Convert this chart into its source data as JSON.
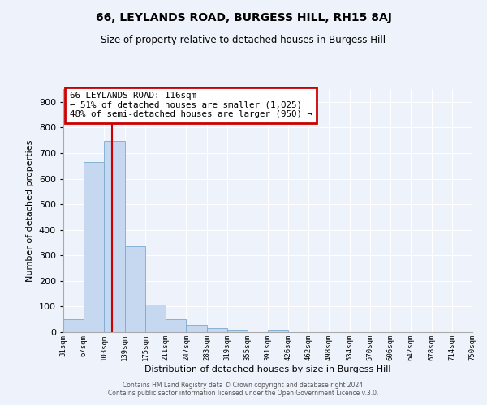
{
  "title": "66, LEYLANDS ROAD, BURGESS HILL, RH15 8AJ",
  "subtitle": "Size of property relative to detached houses in Burgess Hill",
  "xlabel": "Distribution of detached houses by size in Burgess Hill",
  "ylabel": "Number of detached properties",
  "bar_color": "#c5d8f0",
  "bar_edge_color": "#7aaad0",
  "background_color": "#eef2fa",
  "grid_color": "#ffffff",
  "annotation_line1": "66 LEYLANDS ROAD: 116sqm",
  "annotation_line2": "← 51% of detached houses are smaller (1,025)",
  "annotation_line3": "48% of semi-detached houses are larger (950) →",
  "annotation_box_color": "#cc0000",
  "vertical_line_x": 116,
  "vertical_line_color": "#cc0000",
  "bin_edges": [
    31,
    67,
    103,
    139,
    175,
    211,
    247,
    283,
    319,
    355,
    391,
    426,
    462,
    498,
    534,
    570,
    606,
    642,
    678,
    714,
    750
  ],
  "bin_labels": [
    "31sqm",
    "67sqm",
    "103sqm",
    "139sqm",
    "175sqm",
    "211sqm",
    "247sqm",
    "283sqm",
    "319sqm",
    "355sqm",
    "391sqm",
    "426sqm",
    "462sqm",
    "498sqm",
    "534sqm",
    "570sqm",
    "606sqm",
    "642sqm",
    "678sqm",
    "714sqm",
    "750sqm"
  ],
  "bar_heights": [
    52,
    665,
    748,
    335,
    108,
    52,
    27,
    16,
    5,
    0,
    5,
    0,
    0,
    0,
    0,
    0,
    0,
    0,
    0,
    0
  ],
  "ylim": [
    0,
    950
  ],
  "yticks": [
    0,
    100,
    200,
    300,
    400,
    500,
    600,
    700,
    800,
    900
  ],
  "footer_line1": "Contains HM Land Registry data © Crown copyright and database right 2024.",
  "footer_line2": "Contains public sector information licensed under the Open Government Licence v.3.0."
}
